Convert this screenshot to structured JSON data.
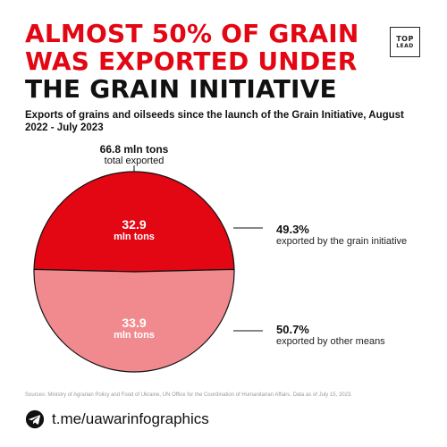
{
  "header": {
    "title_line1": "ALMOST 50% OF GRAIN",
    "title_line2": "WAS EXPORTED UNDER",
    "title_line3": "THE GRAIN INITIATIVE",
    "logo_top": "TOP",
    "logo_bottom": "LEAD",
    "subtitle": "Exports of grains and oilseeds since the launch of the Grain Initiative, August 2022 - July 2023"
  },
  "chart_data": {
    "type": "pie",
    "title": "ALMOST 50% OF GRAIN WAS EXPORTED UNDER THE GRAIN INITIATIVE",
    "subtitle": "Exports of grains and oilseeds since the launch of the Grain Initiative, August 2022 - July 2023",
    "total": {
      "value": "66.8 mln tons",
      "label": "total exported"
    },
    "slices": [
      {
        "value": 32.9,
        "value_label": "32.9",
        "unit": "mln tons",
        "percent_label": "49.3%",
        "description": "exported by the grain initiative",
        "color": "#e30613"
      },
      {
        "value": 33.9,
        "value_label": "33.9",
        "unit": "mln tons",
        "percent_label": "50.7%",
        "description": "exported by other means",
        "color": "#f08a8e"
      }
    ]
  },
  "source": "Sources: Ministry of Agrarian Policy and Food of Ukraine, UN Office for the Coordination of Humanitarian Affairs. Data as of July 15, 2023.",
  "footer": {
    "handle": "t.me/uawarinfographics",
    "icon": "telegram-icon"
  }
}
